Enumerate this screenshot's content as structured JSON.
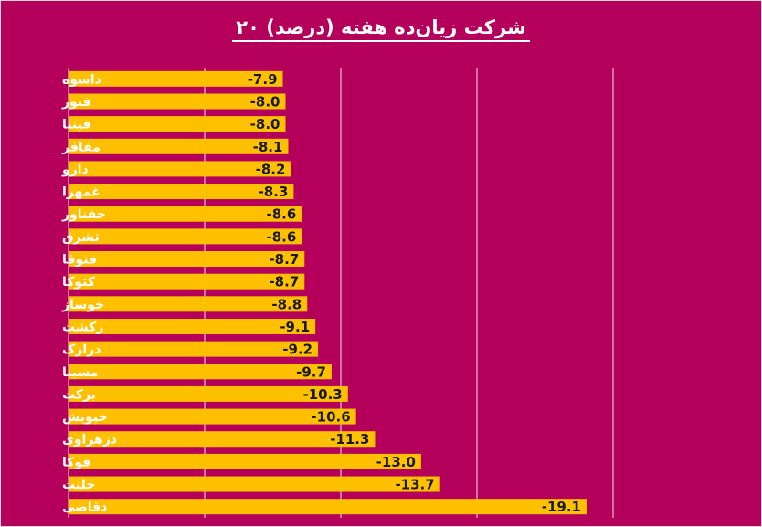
{
  "chart_data": {
    "type": "bar",
    "orientation": "horizontal",
    "title": "۲۰ شرکت زیان‌ده هفته (درصد)",
    "categories": [
      "داسوه",
      "فتور",
      "فپنتا",
      "مفافر",
      "دارو",
      "غمهرا",
      "خفناور",
      "ثشرق",
      "فتوقا",
      "کتوکا",
      "خوساز",
      "زکشت",
      "درازک",
      "مسینا",
      "برکت",
      "خپویش",
      "دزهراوی",
      "فوکا",
      "خلنت",
      "دقاضی"
    ],
    "values": [
      -7.9,
      -8.0,
      -8.0,
      -8.1,
      -8.2,
      -8.3,
      -8.6,
      -8.6,
      -8.7,
      -8.7,
      -8.8,
      -9.1,
      -9.2,
      -9.7,
      -10.3,
      -10.6,
      -11.3,
      -13.0,
      -13.7,
      -19.1
    ],
    "value_labels": [
      "-7.9",
      "-8.0",
      "-8.0",
      "-8.1",
      "-8.2",
      "-8.3",
      "-8.6",
      "-8.6",
      "-8.7",
      "-8.7",
      "-8.8",
      "-9.1",
      "-9.2",
      "-9.7",
      "-10.3",
      "-10.6",
      "-11.3",
      "-13.0",
      "-13.7",
      "-19.1"
    ],
    "xlim": [
      -5,
      -25
    ],
    "grid": true,
    "legend": "none",
    "bar_color": "#FFC000",
    "background_color": "#B5005B"
  }
}
